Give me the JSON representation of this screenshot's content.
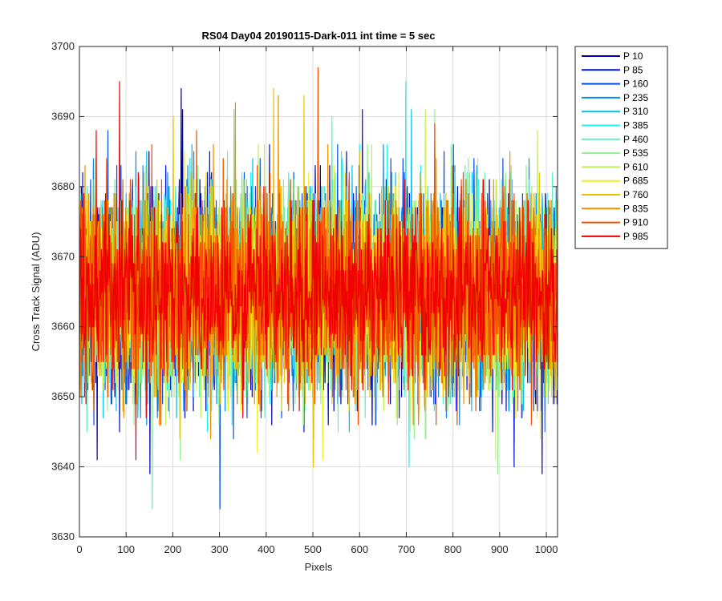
{
  "chart_data": {
    "type": "line",
    "title": "RS04 Day04 20190115-Dark-011 int time = 5 sec",
    "xlabel": "Pixels",
    "ylabel": "Cross Track Signal (ADU)",
    "xlim": [
      0,
      1024
    ],
    "ylim": [
      3630,
      3700
    ],
    "xticks": [
      "0",
      "100",
      "200",
      "300",
      "400",
      "500",
      "600",
      "700",
      "800",
      "900",
      "1000"
    ],
    "yticks": [
      "3630",
      "3640",
      "3650",
      "3660",
      "3670",
      "3680",
      "3690",
      "3700"
    ],
    "grid": true,
    "legend_position": "outside-top-right",
    "num_points": 1024,
    "series": [
      {
        "name": "P 10",
        "color": "#0000b0",
        "mean": 3665,
        "sd": 7.0,
        "spikes": [
          [
            217,
            3694
          ],
          [
            220,
            3691
          ],
          [
            150,
            3639
          ],
          [
            990,
            3639
          ],
          [
            37,
            3641
          ]
        ]
      },
      {
        "name": "P 85",
        "color": "#0010e0",
        "mean": 3665,
        "sd": 7.0,
        "spikes": [
          [
            605,
            3691
          ],
          [
            930,
            3640
          ],
          [
            480,
            3645
          ]
        ]
      },
      {
        "name": "P 160",
        "color": "#0050f0",
        "mean": 3665,
        "sd": 7.0,
        "spikes": [
          [
            300,
            3634
          ],
          [
            60,
            3688
          ],
          [
            800,
            3686
          ]
        ]
      },
      {
        "name": "P 235",
        "color": "#0090f0",
        "mean": 3665,
        "sd": 7.0,
        "spikes": [
          [
            120,
            3685
          ],
          [
            650,
            3686
          ]
        ]
      },
      {
        "name": "P 310",
        "color": "#00c0f0",
        "mean": 3665,
        "sd": 7.0,
        "spikes": [
          [
            710,
            3691
          ],
          [
            840,
            3682
          ]
        ]
      },
      {
        "name": "P 385",
        "color": "#20f0f0",
        "mean": 3665,
        "sd": 7.0,
        "spikes": [
          [
            698,
            3695
          ],
          [
            705,
            3640
          ],
          [
            230,
            3648
          ]
        ]
      },
      {
        "name": "P 460",
        "color": "#60f0c0",
        "mean": 3665,
        "sd": 7.0,
        "spikes": [
          [
            155,
            3634
          ],
          [
            330,
            3691
          ],
          [
            540,
            3690
          ]
        ]
      },
      {
        "name": "P 535",
        "color": "#90f090",
        "mean": 3665,
        "sd": 7.0,
        "spikes": [
          [
            760,
            3691
          ],
          [
            895,
            3639
          ],
          [
            215,
            3641
          ]
        ]
      },
      {
        "name": "P 610",
        "color": "#c0f050",
        "mean": 3665,
        "sd": 7.0,
        "spikes": [
          [
            740,
            3691
          ],
          [
            980,
            3688
          ]
        ]
      },
      {
        "name": "P 685",
        "color": "#f0f020",
        "mean": 3665,
        "sd": 7.0,
        "spikes": [
          [
            520,
            3641
          ],
          [
            380,
            3642
          ],
          [
            890,
            3641
          ]
        ]
      },
      {
        "name": "P 760",
        "color": "#f0c000",
        "mean": 3665,
        "sd": 7.0,
        "spikes": [
          [
            415,
            3694
          ],
          [
            480,
            3693
          ],
          [
            500,
            3640
          ],
          [
            200,
            3690
          ]
        ]
      },
      {
        "name": "P 835",
        "color": "#f09000",
        "mean": 3665,
        "sd": 7.0,
        "spikes": [
          [
            333,
            3692
          ],
          [
            425,
            3693
          ],
          [
            170,
            3646
          ]
        ]
      },
      {
        "name": "P 910",
        "color": "#f05000",
        "mean": 3665,
        "sd": 7.0,
        "spikes": [
          [
            510,
            3697
          ],
          [
            250,
            3688
          ],
          [
            760,
            3689
          ]
        ]
      },
      {
        "name": "P 985",
        "color": "#f00000",
        "mean": 3665,
        "sd": 6.0,
        "spikes": [
          [
            85,
            3695
          ],
          [
            35,
            3688
          ],
          [
            120,
            3641
          ],
          [
            470,
            3648
          ]
        ]
      }
    ]
  }
}
